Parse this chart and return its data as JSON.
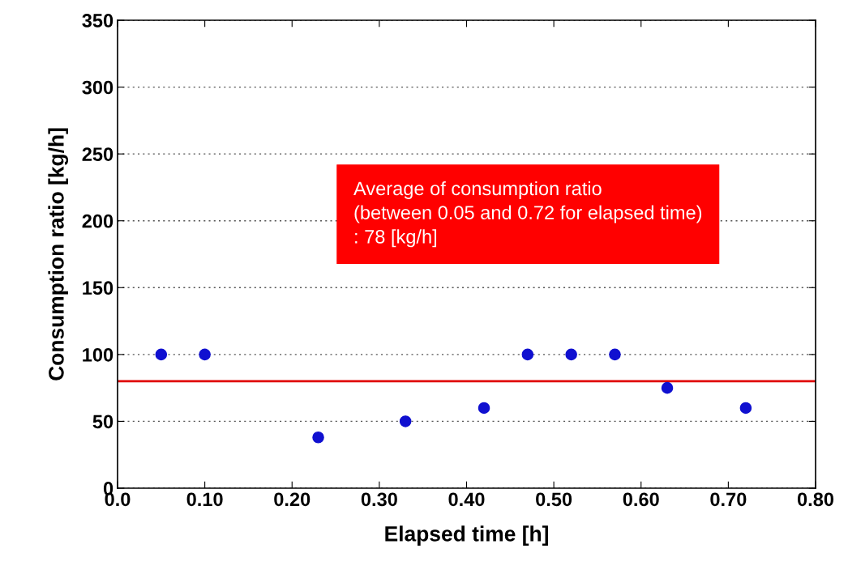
{
  "chart_data": {
    "type": "scatter",
    "xlabel": "Elapsed time [h]",
    "ylabel": "Consumption ratio [kg/h]",
    "x": [
      0.05,
      0.1,
      0.23,
      0.33,
      0.42,
      0.47,
      0.52,
      0.57,
      0.63,
      0.72
    ],
    "series": [
      {
        "color": "#1010d0",
        "values": [
          100,
          100,
          38,
          50,
          60,
          100,
          100,
          100,
          75,
          60
        ]
      }
    ],
    "marker": "circle",
    "xlim": [
      0,
      0.8
    ],
    "xticks": [
      {
        "value": 0,
        "label": "0.0"
      },
      {
        "value": 0.1,
        "label": "0.10"
      },
      {
        "value": 0.2,
        "label": "0.20"
      },
      {
        "value": 0.3,
        "label": "0.30"
      },
      {
        "value": 0.4,
        "label": "0.40"
      },
      {
        "value": 0.5,
        "label": "0.50"
      },
      {
        "value": 0.6,
        "label": "0.60"
      },
      {
        "value": 0.7,
        "label": "0.70"
      },
      {
        "value": 0.8,
        "label": "0.80"
      }
    ],
    "ylim": [
      0,
      350
    ],
    "yticks": [
      0,
      50,
      100,
      150,
      200,
      250,
      300,
      350
    ],
    "grid": "y",
    "ref_lines": [
      {
        "axis": "y",
        "value": 80,
        "color": "#e00000",
        "line_style": "solid"
      }
    ],
    "annotations": [
      "Average of consumption ratio\n(between 0.05 and 0.72 for elapsed time)\n: 78 [kg/h]"
    ]
  }
}
